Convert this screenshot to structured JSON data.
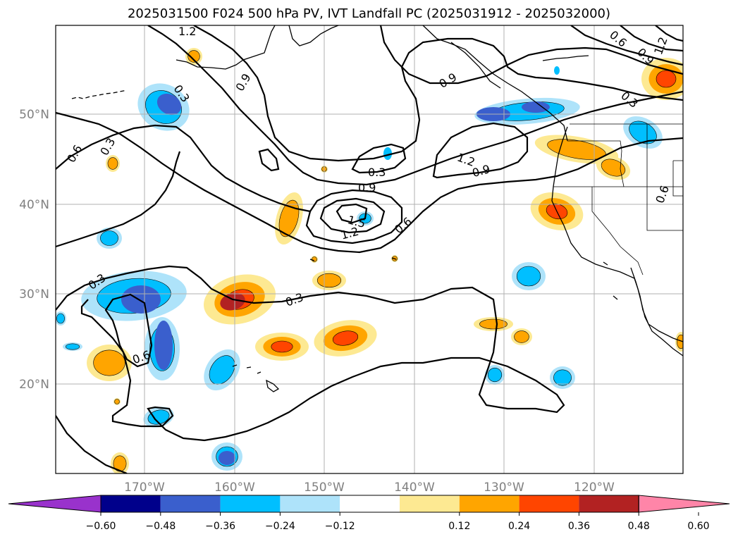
{
  "title": "2025031500 F024 500 hPa PV, IVT Landfall PC (2025031912 - 2025032000)",
  "map": {
    "lat_labels": [
      "50°N",
      "40°N",
      "30°N",
      "20°N"
    ],
    "lon_labels": [
      "170°W",
      "160°W",
      "150°W",
      "140°W",
      "130°W",
      "120°W"
    ],
    "contour_labels": [
      "1.2",
      "0.9",
      "0.3",
      "0.6",
      "0.3",
      "0.9",
      "0.6",
      "0.9",
      "1.2",
      "0.3",
      "0.3",
      "0.9",
      "1.2",
      "0.9",
      "1.5",
      "1.2",
      "0.6",
      "0.3",
      "0.3",
      "0.6",
      "0.6"
    ]
  },
  "colorbar": {
    "ticks": [
      "−0.60",
      "−0.48",
      "−0.36",
      "−0.24",
      "−0.12",
      "0.12",
      "0.24",
      "0.36",
      "0.48",
      "0.60"
    ],
    "colors": [
      "#9932cc",
      "#00008b",
      "#3a5fcd",
      "#00bfff",
      "#aee3fa",
      "#ffffff",
      "#fde992",
      "#ffa500",
      "#ff4500",
      "#b22222",
      "#ff85a8"
    ]
  },
  "fill_colors": {
    "blue_light": "#aee3fa",
    "blue": "#00bfff",
    "blue_dark": "#3a5fcd",
    "yellow": "#fde992",
    "orange": "#ffa500",
    "red": "#ff4500",
    "darkred": "#b22222"
  }
}
